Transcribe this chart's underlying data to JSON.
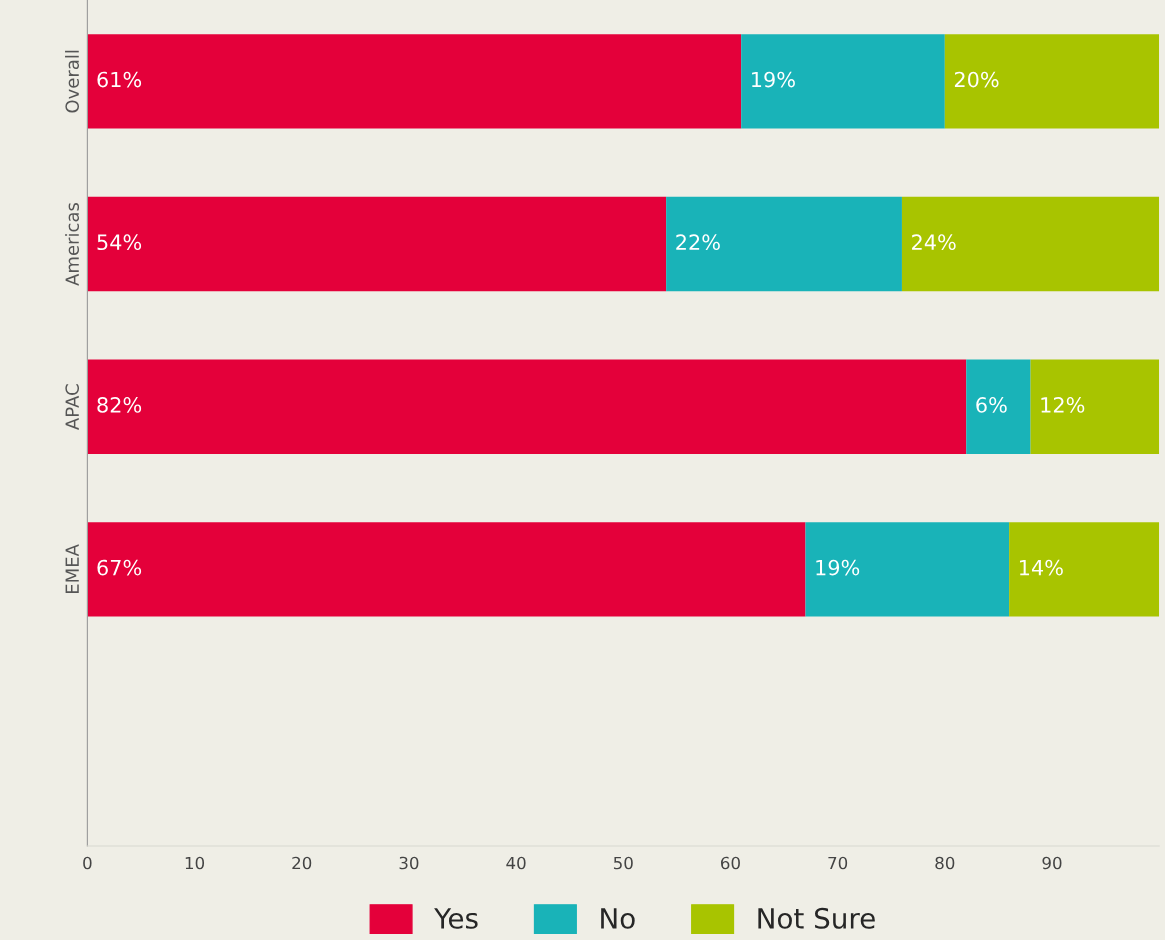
{
  "chart_data": {
    "type": "bar",
    "orientation": "horizontal",
    "stacked": true,
    "categories": [
      "Overall",
      "Americas",
      "APAC",
      "EMEA"
    ],
    "series": [
      {
        "name": "Yes",
        "color": "#e4003a",
        "values": [
          61,
          54,
          82,
          67
        ],
        "value_labels": [
          "61%",
          "54%",
          "82%",
          "67%"
        ]
      },
      {
        "name": "No",
        "color": "#19b3b8",
        "values": [
          19,
          22,
          6,
          19
        ],
        "value_labels": [
          "19%",
          "22%",
          "6%",
          "19%"
        ]
      },
      {
        "name": "Not Sure",
        "color": "#a8c400",
        "values": [
          20,
          24,
          12,
          14
        ],
        "value_labels": [
          "20%",
          "24%",
          "12%",
          "14%"
        ]
      }
    ],
    "xlim": [
      0,
      100
    ],
    "xticks": [
      0,
      10,
      20,
      30,
      40,
      50,
      60,
      70,
      80,
      90
    ],
    "grid": false,
    "legend": "bottom"
  }
}
